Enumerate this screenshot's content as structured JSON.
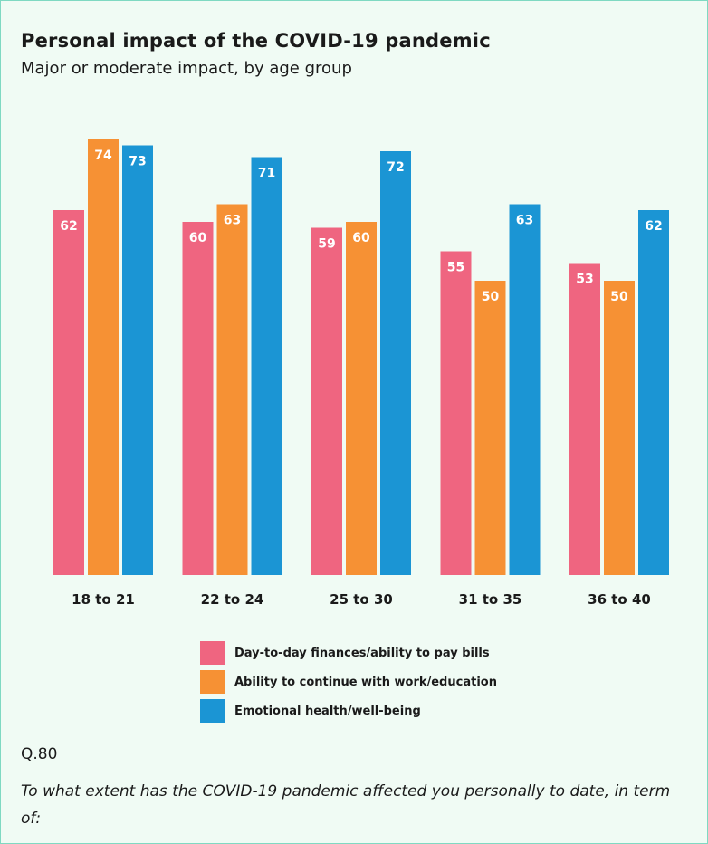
{
  "header": {
    "title": "Personal impact of the COVID-19 pandemic",
    "subtitle": "Major or moderate impact, by age group"
  },
  "chart_data": {
    "type": "bar",
    "title": "Personal impact of the COVID-19 pandemic",
    "subtitle": "Major or moderate impact, by age group",
    "categories": [
      "18 to 21",
      "22 to 24",
      "25 to 30",
      "31 to 35",
      "36 to 40"
    ],
    "series": [
      {
        "name": "Day-to-day finances/ability to pay bills",
        "color": "#ef6580",
        "values": [
          62,
          60,
          59,
          55,
          53
        ]
      },
      {
        "name": "Ability to continue with work/education",
        "color": "#f69134",
        "values": [
          74,
          63,
          60,
          50,
          50
        ]
      },
      {
        "name": "Emotional health/well-being",
        "color": "#1b95d4",
        "values": [
          73,
          71,
          72,
          63,
          62
        ]
      }
    ],
    "ylim": [
      0,
      76
    ],
    "grid": false,
    "legend_position": "bottom",
    "data_labels": true
  },
  "footer": {
    "question_number": "Q.80",
    "question_text": "To what extent has the COVID-19 pandemic affected you personally to date, in term of:"
  }
}
